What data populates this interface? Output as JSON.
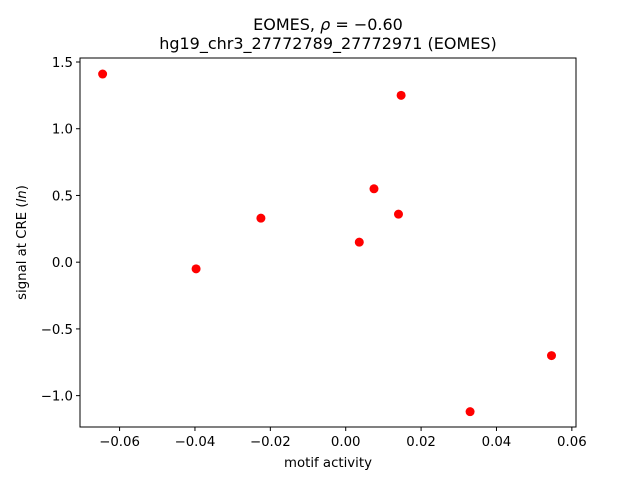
{
  "chart_data": {
    "type": "scatter",
    "title_line1_prefix": "EOMES, ",
    "title_line1_rho": "ρ",
    "title_line1_suffix": " = −0.60",
    "title_line2": "hg19_chr3_27772789_27772971 (EOMES)",
    "xlabel": "motif activity",
    "ylabel_prefix": "signal at CRE (",
    "ylabel_italic": "ln",
    "ylabel_suffix": ")",
    "xlim": [
      -0.0705,
      0.0611
    ],
    "ylim": [
      -1.235,
      1.53
    ],
    "xticks": [
      -0.06,
      -0.04,
      -0.02,
      0.0,
      0.02,
      0.04,
      0.06
    ],
    "xtick_labels": [
      "−0.06",
      "−0.04",
      "−0.02",
      "0.00",
      "0.02",
      "0.04",
      "0.06"
    ],
    "yticks": [
      -1.0,
      -0.5,
      0.0,
      0.5,
      1.0,
      1.5
    ],
    "ytick_labels": [
      "−1.0",
      "−0.5",
      "0.0",
      "0.5",
      "1.0",
      "1.5"
    ],
    "grid": false,
    "marker_color": "#ff0000",
    "points": [
      {
        "x": -0.0645,
        "y": 1.41
      },
      {
        "x": -0.0397,
        "y": -0.05
      },
      {
        "x": -0.0225,
        "y": 0.33
      },
      {
        "x": 0.0036,
        "y": 0.15
      },
      {
        "x": 0.0075,
        "y": 0.55
      },
      {
        "x": 0.014,
        "y": 0.36
      },
      {
        "x": 0.0147,
        "y": 1.25
      },
      {
        "x": 0.033,
        "y": -1.12
      },
      {
        "x": 0.0546,
        "y": -0.7
      }
    ]
  }
}
